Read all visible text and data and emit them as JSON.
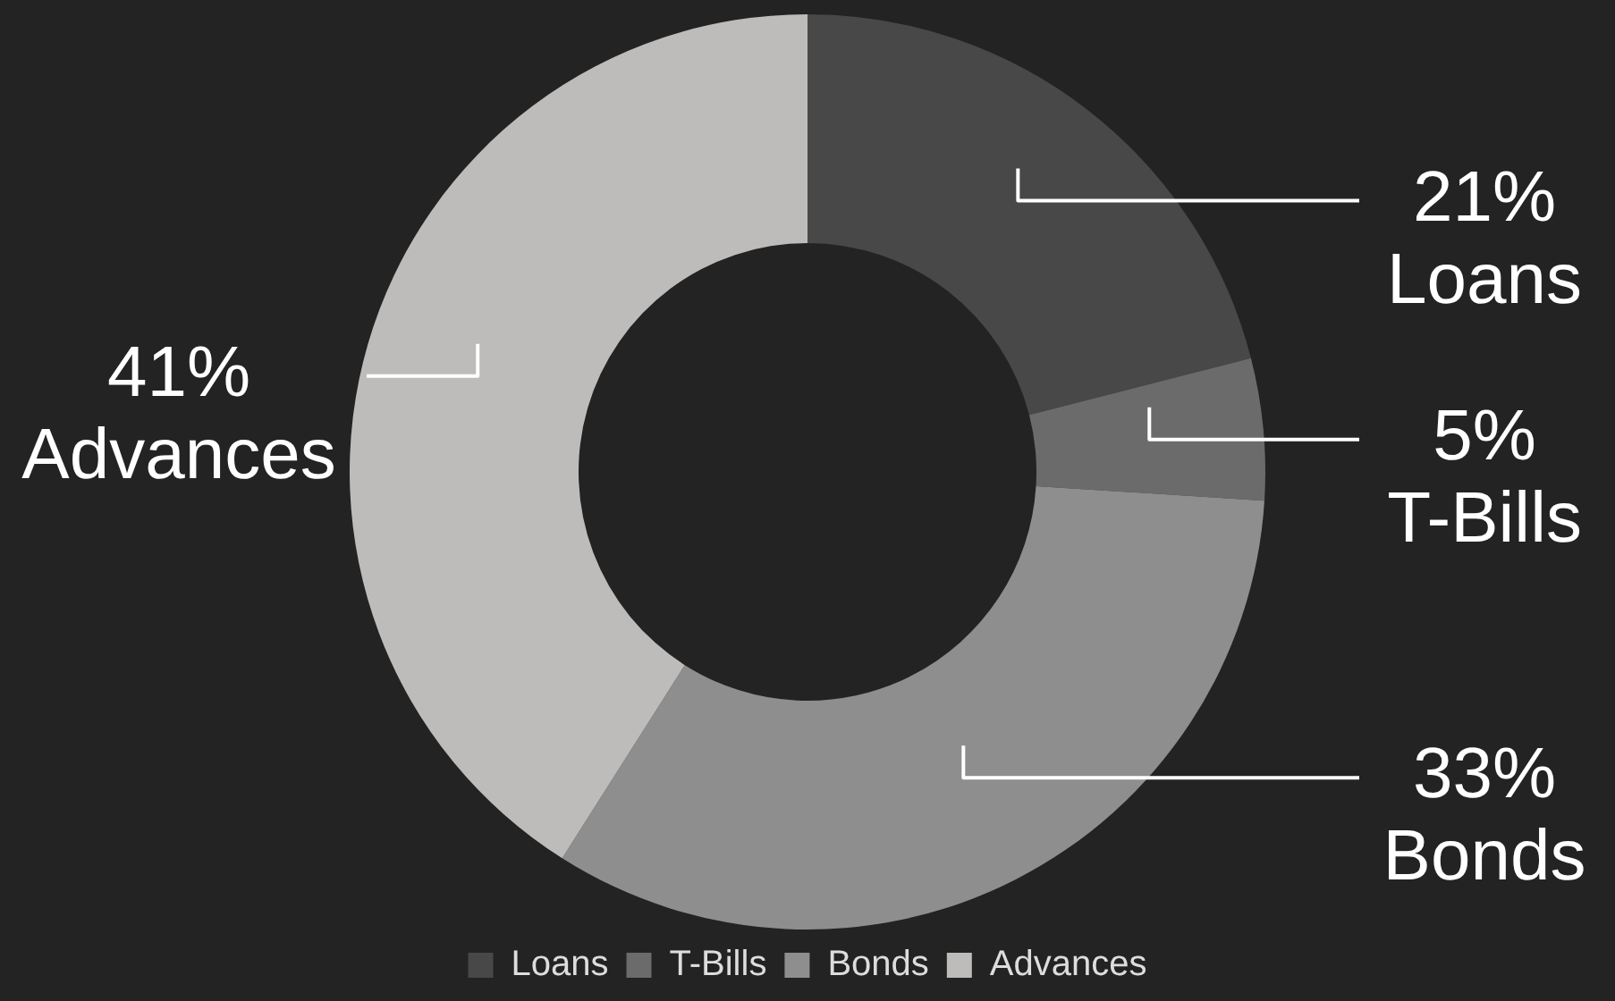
{
  "chart_data": {
    "type": "donut",
    "categories": [
      "Loans",
      "T-Bills",
      "Bonds",
      "Advances"
    ],
    "values": [
      21,
      5,
      33,
      41
    ],
    "value_labels": [
      "21%",
      "5%",
      "33%",
      "41%"
    ],
    "colors": [
      "#484848",
      "#6b6b6b",
      "#8e8e8e",
      "#bdbcba"
    ],
    "legend": "bottom"
  }
}
